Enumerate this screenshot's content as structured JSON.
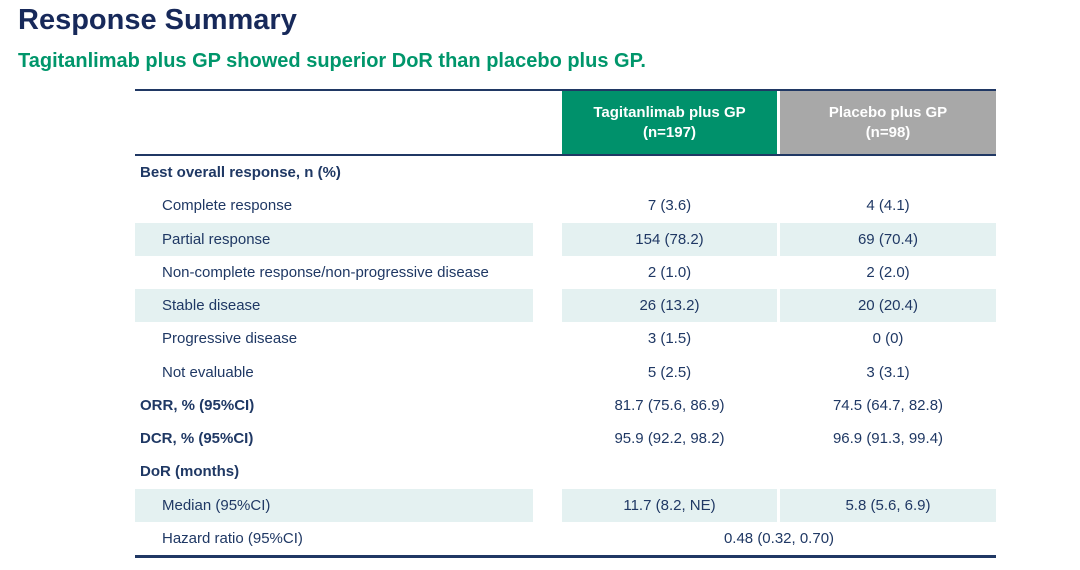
{
  "page": {
    "title": "Response Summary",
    "subtitle": "Tagitanlimab plus GP showed superior DoR than placebo plus GP."
  },
  "colors": {
    "title_navy": "#17295A",
    "subtitle_green": "#00966B",
    "header_green": "#00916B",
    "header_gray": "#A8A8A8",
    "row_shade_teal": "#E4F1F1",
    "body_text_navy": "#1F3864",
    "rule_navy": "#203864"
  },
  "table": {
    "columns": [
      {
        "label": "Tagitanlimab plus GP",
        "sublabel": "(n=197)"
      },
      {
        "label": "Placebo plus GP",
        "sublabel": "(n=98)"
      }
    ],
    "rows": [
      {
        "label": "Best overall response, n (%)",
        "bold": true,
        "indent": false,
        "shaded": false,
        "values": [
          "",
          ""
        ]
      },
      {
        "label": "Complete response",
        "bold": false,
        "indent": true,
        "shaded": false,
        "values": [
          "7 (3.6)",
          "4 (4.1)"
        ]
      },
      {
        "label": "Partial response",
        "bold": false,
        "indent": true,
        "shaded": true,
        "values": [
          "154 (78.2)",
          "69 (70.4)"
        ]
      },
      {
        "label": "Non-complete response/non-progressive disease",
        "bold": false,
        "indent": true,
        "shaded": false,
        "values": [
          "2 (1.0)",
          "2 (2.0)"
        ]
      },
      {
        "label": "Stable disease",
        "bold": false,
        "indent": true,
        "shaded": true,
        "values": [
          "26 (13.2)",
          "20 (20.4)"
        ]
      },
      {
        "label": "Progressive disease",
        "bold": false,
        "indent": true,
        "shaded": false,
        "values": [
          "3 (1.5)",
          "0 (0)"
        ]
      },
      {
        "label": "Not evaluable",
        "bold": false,
        "indent": true,
        "shaded": false,
        "values": [
          "5 (2.5)",
          "3 (3.1)"
        ]
      },
      {
        "label": "ORR, % (95%CI)",
        "bold": true,
        "indent": false,
        "shaded": false,
        "values": [
          "81.7 (75.6, 86.9)",
          "74.5 (64.7, 82.8)"
        ]
      },
      {
        "label": "DCR, % (95%CI)",
        "bold": true,
        "indent": false,
        "shaded": false,
        "values": [
          "95.9 (92.2, 98.2)",
          "96.9 (91.3, 99.4)"
        ]
      },
      {
        "label": "DoR (months)",
        "bold": true,
        "indent": false,
        "shaded": false,
        "values": [
          "",
          ""
        ]
      },
      {
        "label": "Median (95%CI)",
        "bold": false,
        "indent": true,
        "shaded": true,
        "values": [
          "11.7 (8.2, NE)",
          "5.8 (5.6, 6.9)"
        ]
      },
      {
        "label": "Hazard ratio (95%CI)",
        "bold": false,
        "indent": true,
        "shaded": false,
        "span_value": "0.48 (0.32, 0.70)"
      }
    ]
  }
}
